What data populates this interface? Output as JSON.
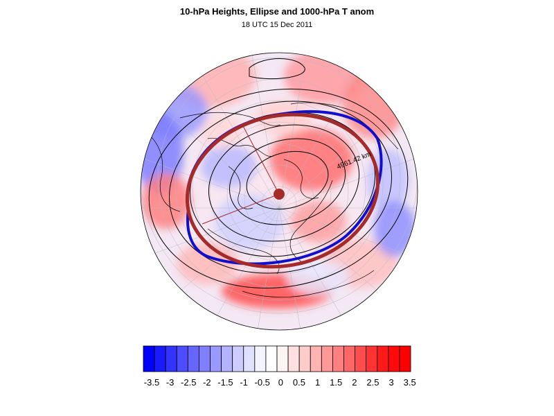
{
  "title": "10-hPa Heights, Ellipse and 1000-hPa T anom",
  "subtitle": "18 UTC 15 Dec 2011",
  "ellipse_label": "4961.42 km",
  "colors": {
    "ellipse_ring": "#a52a2a",
    "vortex_edge": "#1010cc",
    "contour": "#000000",
    "negative_max": "#0000ff",
    "positive_max": "#ff0000"
  },
  "colorbar": {
    "labels": [
      "-3.5",
      "-3",
      "-2.5",
      "-2",
      "-1.5",
      "-1",
      "-0.5",
      "0",
      "0.5",
      "1",
      "1.5",
      "2",
      "2.5",
      "3",
      "3.5"
    ],
    "bins": [
      "#0000ff",
      "#1a1aff",
      "#3333ff",
      "#4d4dff",
      "#6666ff",
      "#8080ff",
      "#9999ff",
      "#b3b3ff",
      "#ccccff",
      "#e0e0ff",
      "#f4f4ff",
      "#ffffff",
      "#fff4f4",
      "#ffe0e0",
      "#ffcccc",
      "#ffb3b3",
      "#ff9999",
      "#ff8080",
      "#ff6666",
      "#ff4d4d",
      "#ff3333",
      "#ff1a1a",
      "#ff0a0a",
      "#ff0000"
    ]
  }
}
